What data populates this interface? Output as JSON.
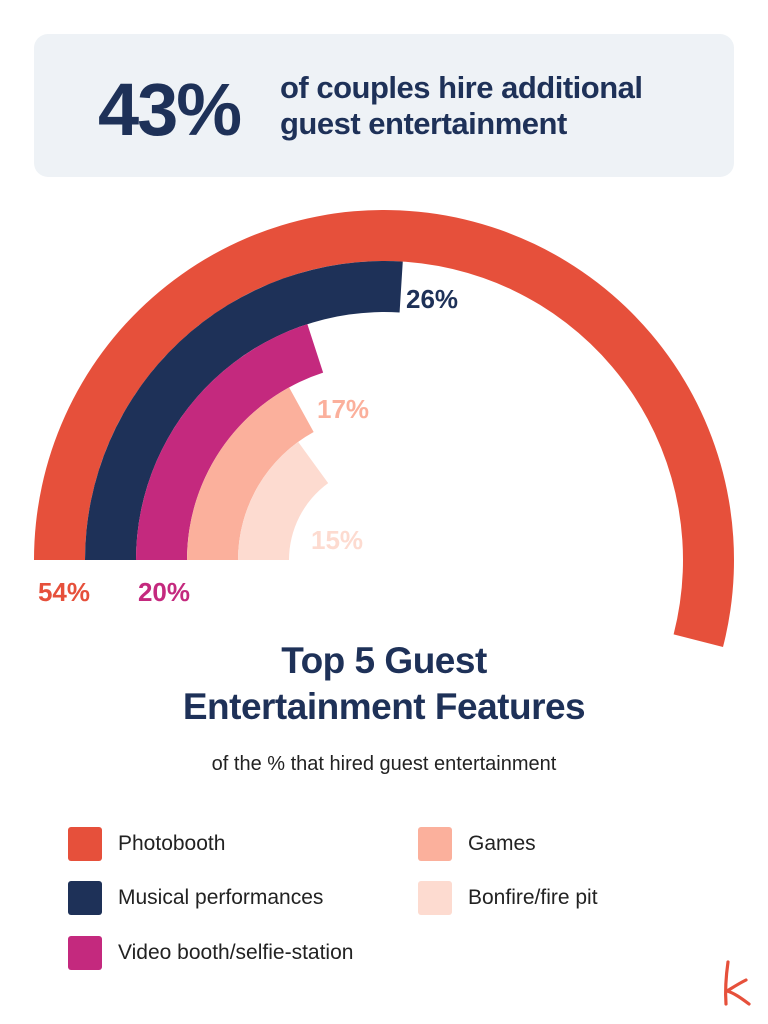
{
  "banner": {
    "percent": "43%",
    "text": "of couples hire additional guest entertainment"
  },
  "chart_data": {
    "type": "radial-bar",
    "title": "Top 5 Guest Entertainment Features",
    "subtitle": "of the % that hired guest entertainment",
    "series": [
      {
        "name": "Photobooth",
        "value": 54,
        "label": "54%",
        "color": "#e6503b",
        "label_color": "#e6503b"
      },
      {
        "name": "Musical performances",
        "value": 26,
        "label": "26%",
        "color": "#1e3158",
        "label_color": "#1e3158"
      },
      {
        "name": "Video booth/selfie-station",
        "value": 20,
        "label": "20%",
        "color": "#c4297e",
        "label_color": "#c4297e"
      },
      {
        "name": "Games",
        "value": 17,
        "label": "17%",
        "color": "#fbb09c",
        "label_color": "#fbb09c"
      },
      {
        "name": "Bonfire/fire pit",
        "value": 15,
        "label": "15%",
        "color": "#fddbd0",
        "label_color": "#fddbd0"
      }
    ]
  },
  "logo": {
    "icon": "k-logo-icon",
    "color": "#e6503b"
  }
}
